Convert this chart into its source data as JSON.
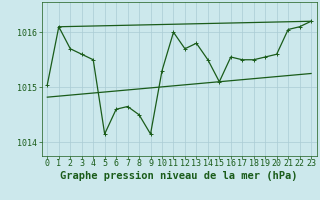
{
  "title": "Graphe pression niveau de la mer (hPa)",
  "background_color": "#cce8ec",
  "grid_color": "#aaccd4",
  "line_color": "#1a5c1a",
  "text_color": "#1a5c1a",
  "hours": [
    0,
    1,
    2,
    3,
    4,
    5,
    6,
    7,
    8,
    9,
    10,
    11,
    12,
    13,
    14,
    15,
    16,
    17,
    18,
    19,
    20,
    21,
    22,
    23
  ],
  "pressure": [
    1015.05,
    1016.1,
    1015.7,
    1015.6,
    1015.5,
    1014.15,
    1014.6,
    1014.65,
    1014.5,
    1014.15,
    1015.3,
    1016.0,
    1015.7,
    1015.8,
    1015.5,
    1015.1,
    1015.55,
    1015.5,
    1015.5,
    1015.55,
    1015.6,
    1016.05,
    1016.1,
    1016.2
  ],
  "trend1_x": [
    0,
    23
  ],
  "trend1_y": [
    1014.82,
    1015.25
  ],
  "trend2_x": [
    1,
    23
  ],
  "trend2_y": [
    1016.1,
    1016.2
  ],
  "ylim": [
    1013.75,
    1016.55
  ],
  "yticks": [
    1014,
    1015,
    1016
  ],
  "xticks": [
    0,
    1,
    2,
    3,
    4,
    5,
    6,
    7,
    8,
    9,
    10,
    11,
    12,
    13,
    14,
    15,
    16,
    17,
    18,
    19,
    20,
    21,
    22,
    23
  ],
  "marker_size": 2.5,
  "line_width": 0.9,
  "tick_fontsize": 6.0,
  "title_fontsize": 7.5
}
